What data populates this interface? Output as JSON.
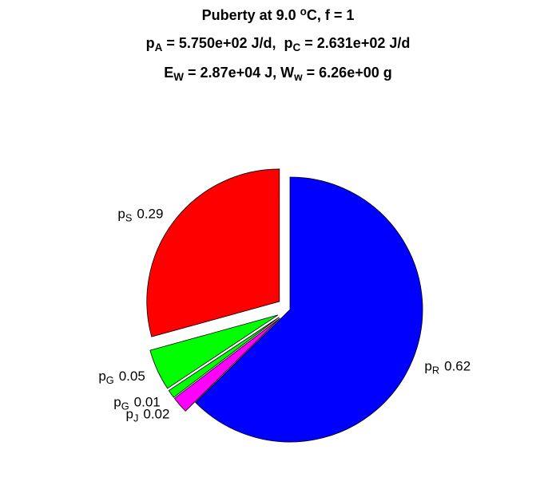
{
  "chart_data": {
    "type": "pie",
    "title": [
      [
        {
          "text": "Puberty at 9.0 "
        },
        {
          "sup": "o"
        },
        {
          "text": "C, f = 1"
        }
      ],
      [
        {
          "text": "p"
        },
        {
          "sub": "A"
        },
        {
          "text": " = 5.750e+02 J/d,  p"
        },
        {
          "sub": "C"
        },
        {
          "text": " = 2.631e+02 J/d"
        }
      ],
      [
        {
          "text": "E"
        },
        {
          "sub": "W"
        },
        {
          "text": " = 2.87e+04 J, W"
        },
        {
          "sub": "w"
        },
        {
          "text": " = 6.26e+00 g"
        }
      ]
    ],
    "categories": [
      [
        {
          "text": "p"
        },
        {
          "sub": "R"
        }
      ],
      [
        {
          "text": "p"
        },
        {
          "sub": "J"
        }
      ],
      [
        {
          "text": "p"
        },
        {
          "sub": "G"
        }
      ],
      [
        {
          "text": "p"
        },
        {
          "sub": "G"
        }
      ],
      [
        {
          "text": "p"
        },
        {
          "sub": "S"
        }
      ]
    ],
    "values": [
      0.62,
      0.02,
      0.01,
      0.05,
      0.29
    ],
    "colors": [
      "#0000ff",
      "#ff00ff",
      "#00ff00",
      "#00ff00",
      "#ff0000"
    ],
    "explode": [
      0,
      1,
      1,
      1,
      1
    ]
  }
}
